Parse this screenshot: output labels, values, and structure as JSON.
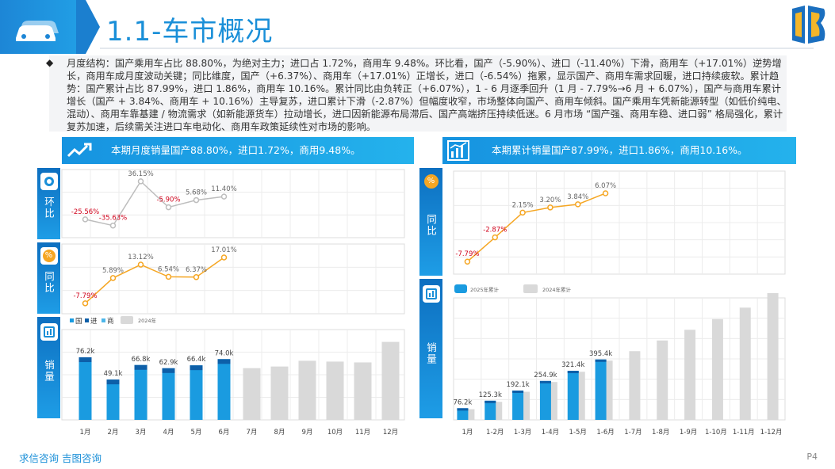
{
  "header": {
    "title": "1.1-车市概况"
  },
  "summary": {
    "bullet": "◆",
    "text": "月度结构：国产乘用车占比 88.80%，为绝对主力；进口占 1.72%，商用车 9.48%。环比看，国产（-5.90%）、进口（-11.40%）下滑，商用车（+17.01%）逆势增长，商用车成月度波动关键；同比维度，国产（+6.37%）、商用车（+17.01%）正增长，进口（-6.54%）拖累，显示国产、商用车需求回暖，进口持续疲软。累计趋势：国产累计占比 87.99%，进口 1.86%，商用车 10.16%。累计同比由负转正（+6.07%），1 - 6 月逐季回升（1 月 - 7.79%→6 月 + 6.07%），国产与商用车累计增长（国产 + 3.84%、商用车 + 10.16%）主导复苏，进口累计下滑（-2.87%）但幅度收窄，市场整体向国产、商用车倾斜。国产乘用车凭新能源转型（如低价纯电、混动）、商用车靠基建 / 物流需求（如新能源货车）拉动增长，进口因新能源布局滞后、国产高端挤压持续低迷。6 月市场 “国产强、商用车稳、进口弱” 格局强化，累计复苏加速，后续需关注进口车电动化、商用车政策延续性对市场的影响。"
  },
  "left_banner": {
    "text": "本期月度销量国产88.80%，进口1.72%，商用9.48%。"
  },
  "right_banner": {
    "text": "本期累计销量国产87.99%，进口1.86%，商用10.16%。"
  },
  "tabs": {
    "mom": "环比",
    "yoy": "同比",
    "sales": "销量",
    "cum_yoy": "同比",
    "cum_sales": "销量"
  },
  "footer": {
    "left": "求信咨询 吉图咨询",
    "page": "P4"
  },
  "colors": {
    "accent": "#1a8fd8",
    "orange": "#f5a623",
    "gray": "#bdbdbd",
    "red": "#d0021b",
    "bar_blue": "#1a9be0",
    "bar_dark": "#0d5fa8",
    "bar_gray": "#d9d9d9"
  },
  "chart_data": [
    {
      "type": "line",
      "name": "monthly-mom",
      "categories": [
        "1月",
        "2月",
        "3月",
        "4月",
        "5月",
        "6月"
      ],
      "values": [
        -25.56,
        -35.63,
        36.15,
        -5.9,
        5.68,
        11.4
      ],
      "labels": [
        "-25.56%",
        "-35.63%",
        "36.15%",
        "-5.90%",
        "5.68%",
        "11.40%"
      ]
    },
    {
      "type": "line",
      "name": "monthly-yoy",
      "categories": [
        "1月",
        "2月",
        "3月",
        "4月",
        "5月",
        "6月"
      ],
      "values": [
        -7.79,
        5.89,
        13.12,
        6.54,
        6.37,
        17.01
      ],
      "labels": [
        "-7.79%",
        "5.89%",
        "13.12%",
        "6.54%",
        "6.37%",
        "17.01%"
      ]
    },
    {
      "type": "bar",
      "name": "monthly-sales",
      "categories": [
        "1月",
        "2月",
        "3月",
        "4月",
        "5月",
        "6月",
        "7月",
        "8月",
        "9月",
        "10月",
        "11月",
        "12月"
      ],
      "legend": [
        "国",
        "进",
        "商",
        "2024年"
      ],
      "series": [
        {
          "name": "2025",
          "values": [
            76.2,
            49.1,
            66.8,
            62.9,
            66.4,
            74.0,
            null,
            null,
            null,
            null,
            null,
            null
          ],
          "labels": [
            "76.2k",
            "49.1k",
            "66.8k",
            "62.9k",
            "66.4k",
            "74.0k"
          ]
        },
        {
          "name": "2024年",
          "values": [
            null,
            null,
            null,
            null,
            null,
            null,
            63,
            65,
            72,
            71,
            70,
            95
          ]
        }
      ]
    },
    {
      "type": "line",
      "name": "cumulative-yoy",
      "categories": [
        "1月",
        "1-2月",
        "1-3月",
        "1-4月",
        "1-5月",
        "1-6月"
      ],
      "values": [
        -7.79,
        -2.87,
        2.15,
        3.2,
        3.84,
        6.07
      ],
      "labels": [
        "-7.79%",
        "-2.87%",
        "2.15%",
        "3.20%",
        "3.84%",
        "6.07%"
      ]
    },
    {
      "type": "bar",
      "name": "cumulative-sales",
      "categories": [
        "1月",
        "1-2月",
        "1-3月",
        "1-4月",
        "1-5月",
        "1-6月",
        "1-7月",
        "1-8月",
        "1-9月",
        "1-10月",
        "1-11月",
        "1-12月"
      ],
      "legend": [
        "2025年累计",
        "2024年累计"
      ],
      "series": [
        {
          "name": "2025年累计",
          "values": [
            76.2,
            125.3,
            192.1,
            254.9,
            321.4,
            395.4,
            null,
            null,
            null,
            null,
            null,
            null
          ],
          "labels": [
            "76.2k",
            "125.3k",
            "192.1k",
            "254.9k",
            "321.4k",
            "395.4k"
          ]
        },
        {
          "name": "2024年累计",
          "values": [
            70,
            118,
            184,
            248,
            315,
            388,
            450,
            520,
            590,
            660,
            735,
            830
          ]
        }
      ]
    }
  ]
}
